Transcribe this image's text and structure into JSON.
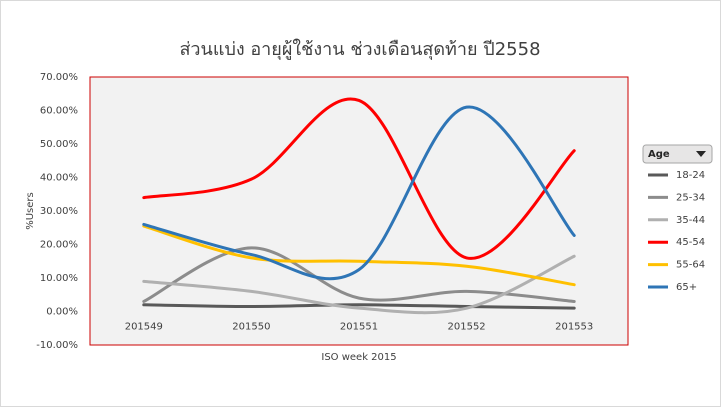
{
  "chart_data": {
    "type": "line",
    "title": "ส่วนแบ่ง อายุผู้ใช้งาน ช่วงเดือนสุดท้าย ปี2558",
    "x_label": "ISO week  2015",
    "y_label": "%Users",
    "legend_title": "Age",
    "categories": [
      "201549",
      "201550",
      "201551",
      "201552",
      "201553"
    ],
    "series": [
      {
        "name": "18-24",
        "color": "#595959",
        "values": [
          2,
          1.5,
          2,
          1.5,
          1
        ]
      },
      {
        "name": "25-34",
        "color": "#8c8c8c",
        "values": [
          3,
          19,
          4,
          6,
          3
        ]
      },
      {
        "name": "35-44",
        "color": "#b0b0b0",
        "values": [
          9,
          6,
          1,
          1,
          16.5
        ]
      },
      {
        "name": "45-54",
        "color": "#ff0000",
        "values": [
          34,
          39.5,
          63,
          16,
          48
        ]
      },
      {
        "name": "55-64",
        "color": "#ffc000",
        "values": [
          25.5,
          16,
          15,
          13.5,
          8
        ]
      },
      {
        "name": "65+",
        "color": "#2e75b6",
        "values": [
          26,
          17,
          12.5,
          61,
          22.7
        ]
      }
    ],
    "ylim": [
      -10,
      70
    ],
    "yticks": [
      {
        "value": -10,
        "label": "-10.00%"
      },
      {
        "value": 0,
        "label": "0.00%"
      },
      {
        "value": 10,
        "label": "10.00%"
      },
      {
        "value": 20,
        "label": "20.00%"
      },
      {
        "value": 30,
        "label": "30.00%"
      },
      {
        "value": 40,
        "label": "40.00%"
      },
      {
        "value": 50,
        "label": "50.00%"
      },
      {
        "value": 60,
        "label": "60.00%"
      },
      {
        "value": 70,
        "label": "70.00%"
      }
    ],
    "grid": false,
    "smooth": true,
    "legend": "right"
  }
}
